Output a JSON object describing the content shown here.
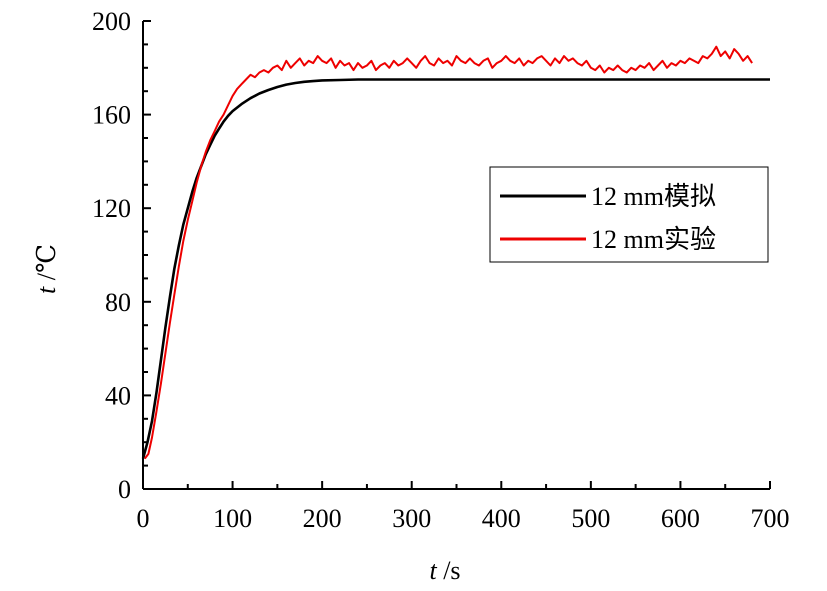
{
  "chart_data": {
    "type": "line",
    "xlabel": {
      "var": "t",
      "unit": " /s"
    },
    "ylabel": {
      "var": "t",
      "unit": " /℃"
    },
    "xlim": [
      0,
      700
    ],
    "ylim": [
      0,
      200
    ],
    "xticks": [
      "0",
      "100",
      "200",
      "300",
      "400",
      "500",
      "600",
      "700"
    ],
    "yticks": [
      "0",
      "40",
      "80",
      "120",
      "160",
      "200"
    ],
    "grid": false,
    "legend_position": "right",
    "series": [
      {
        "name": "12 mm模拟",
        "color": "#000000",
        "x": [
          0,
          5,
          10,
          15,
          20,
          25,
          30,
          35,
          40,
          45,
          50,
          55,
          60,
          65,
          70,
          75,
          80,
          85,
          90,
          95,
          100,
          110,
          120,
          130,
          140,
          150,
          160,
          170,
          180,
          190,
          200,
          220,
          240,
          260,
          280,
          300,
          350,
          400,
          450,
          500,
          550,
          600,
          650,
          700
        ],
        "y": [
          13,
          20,
          29,
          41,
          55,
          69,
          82,
          94,
          104,
          113,
          120,
          127,
          133,
          138,
          143,
          147,
          151,
          154,
          157,
          159.5,
          161.5,
          164.5,
          167,
          169,
          170.5,
          171.8,
          172.8,
          173.5,
          174,
          174.3,
          174.6,
          174.8,
          175,
          175,
          175,
          175,
          175,
          175,
          175,
          175,
          175,
          175,
          175,
          175
        ]
      },
      {
        "name": "12 mm实验",
        "color": "#ee0000",
        "x": [
          2,
          6,
          10,
          15,
          20,
          25,
          30,
          35,
          40,
          45,
          50,
          55,
          60,
          65,
          70,
          75,
          80,
          85,
          90,
          95,
          100,
          105,
          110,
          115,
          120,
          125,
          130,
          135,
          140,
          145,
          150,
          155,
          160,
          165,
          170,
          175,
          180,
          185,
          190,
          195,
          200,
          205,
          210,
          215,
          220,
          225,
          230,
          235,
          240,
          245,
          250,
          255,
          260,
          265,
          270,
          275,
          280,
          285,
          290,
          295,
          300,
          305,
          310,
          315,
          320,
          325,
          330,
          335,
          340,
          345,
          350,
          355,
          360,
          365,
          370,
          375,
          380,
          385,
          390,
          395,
          400,
          405,
          410,
          415,
          420,
          425,
          430,
          435,
          440,
          445,
          450,
          455,
          460,
          465,
          470,
          475,
          480,
          485,
          490,
          495,
          500,
          505,
          510,
          515,
          520,
          525,
          530,
          535,
          540,
          545,
          550,
          555,
          560,
          565,
          570,
          575,
          580,
          585,
          590,
          595,
          600,
          605,
          610,
          615,
          620,
          625,
          630,
          635,
          640,
          645,
          650,
          655,
          660,
          665,
          670,
          675,
          680
        ],
        "y": [
          13,
          15,
          22,
          33,
          45,
          58,
          71,
          83,
          95,
          106,
          115,
          123,
          131,
          138,
          144,
          149,
          153,
          157,
          160,
          164,
          168,
          171,
          173,
          175,
          177,
          176,
          178,
          179,
          178,
          180,
          181,
          179,
          183,
          180,
          182,
          184,
          181,
          183,
          182,
          185,
          183,
          182,
          184,
          180,
          183,
          181,
          182,
          179,
          182,
          180,
          181,
          183,
          179,
          181,
          182,
          180,
          183,
          181,
          182,
          184,
          182,
          180,
          183,
          185,
          182,
          181,
          184,
          182,
          183,
          181,
          185,
          183,
          182,
          184,
          182,
          181,
          183,
          184,
          180,
          182,
          183,
          185,
          183,
          182,
          184,
          181,
          183,
          182,
          184,
          185,
          183,
          181,
          184,
          182,
          185,
          183,
          184,
          182,
          181,
          183,
          180,
          179,
          181,
          178,
          180,
          179,
          181,
          179,
          178,
          180,
          179,
          181,
          180,
          182,
          179,
          181,
          183,
          180,
          182,
          181,
          183,
          182,
          184,
          183,
          182,
          185,
          184,
          186,
          189,
          185,
          187,
          184,
          188,
          186,
          183,
          185,
          182
        ]
      }
    ]
  }
}
